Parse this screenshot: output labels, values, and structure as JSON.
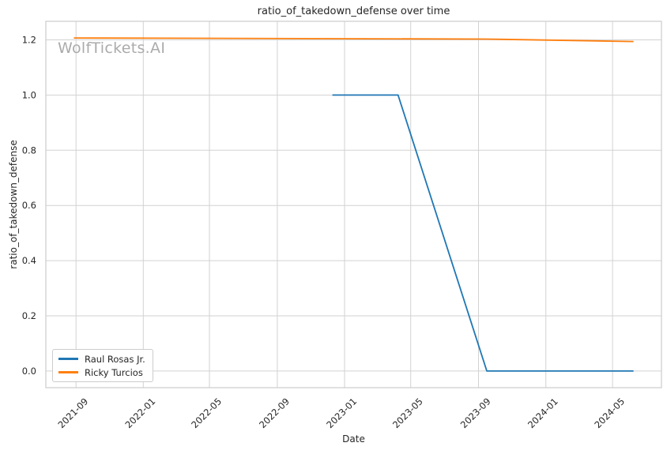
{
  "chart_data": {
    "type": "line",
    "title": "ratio_of_takedown_defense over time",
    "xlabel": "Date",
    "ylabel": "ratio_of_takedown_defense",
    "watermark": "WolfTickets.AI",
    "grid": true,
    "legend_position": "lower left",
    "background_color": "#ffffff",
    "grid_color": "#d2d2d2",
    "spine_color": "#cccccc",
    "text_color": "#262626",
    "x_tick_labels": [
      "2021-09",
      "2022-01",
      "2022-05",
      "2022-09",
      "2023-01",
      "2023-05",
      "2023-09",
      "2024-01",
      "2024-05"
    ],
    "y_tick_values": [
      0.0,
      0.2,
      0.4,
      0.6,
      0.8,
      1.0,
      1.2
    ],
    "ylim": [
      -0.06,
      1.27
    ],
    "series": [
      {
        "name": "Raul Rosas Jr.",
        "color": "#1f77b4",
        "points": [
          {
            "date": "2022-12-10",
            "value": 1.0
          },
          {
            "date": "2023-04-08",
            "value": 1.0
          },
          {
            "date": "2023-09-16",
            "value": 0.0
          },
          {
            "date": "2024-06-08",
            "value": 0.0
          }
        ]
      },
      {
        "name": "Ricky Turcios",
        "color": "#ff7f0e",
        "points": [
          {
            "date": "2021-08-28",
            "value": 1.207
          },
          {
            "date": "2023-09-16",
            "value": 1.203
          },
          {
            "date": "2024-06-08",
            "value": 1.194
          }
        ]
      }
    ]
  }
}
